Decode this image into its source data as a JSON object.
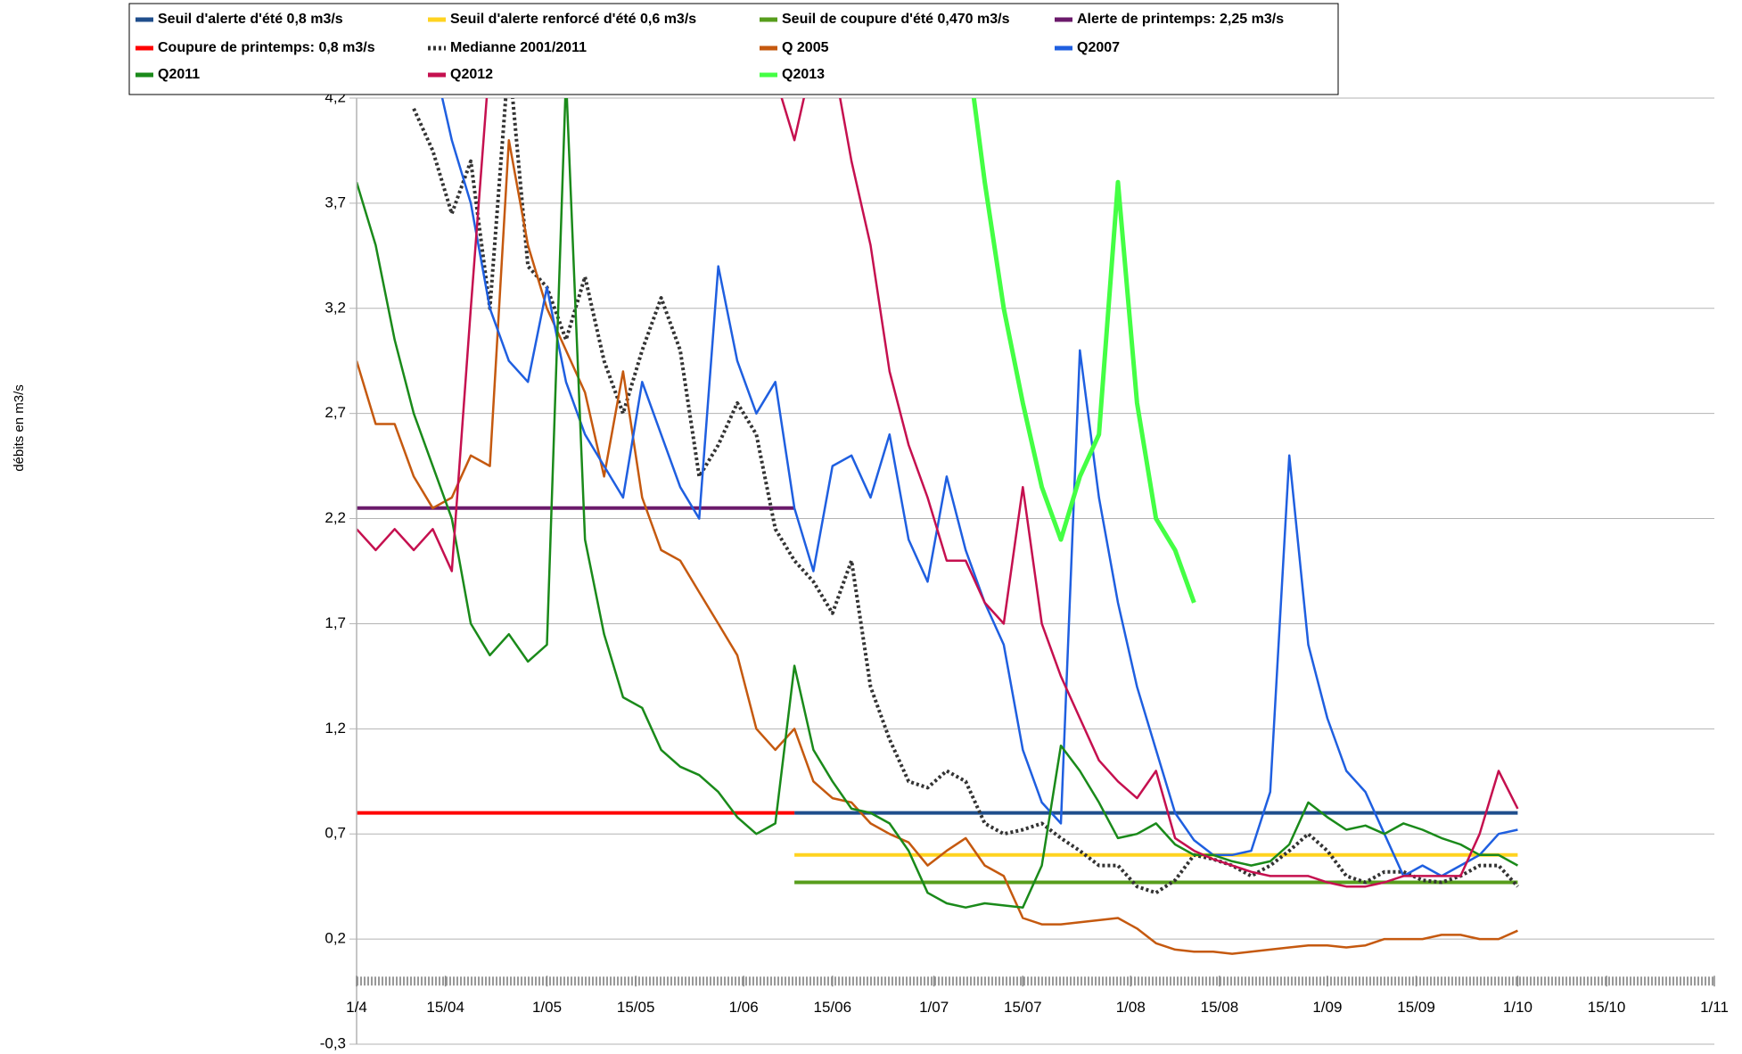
{
  "chart_data": {
    "type": "line",
    "y_label": "débits en m3/s",
    "x": [
      0,
      3,
      6,
      9,
      12,
      15,
      18,
      21,
      24,
      27,
      30,
      33,
      36,
      39,
      42,
      45,
      48,
      51,
      54,
      57,
      60,
      63,
      66,
      69,
      72,
      75,
      78,
      81,
      84,
      87,
      90,
      93,
      96,
      99,
      102,
      105,
      108,
      111,
      114,
      117,
      120,
      123,
      126,
      129,
      132,
      135,
      138,
      141,
      144,
      147,
      150,
      153,
      156,
      159,
      162,
      165,
      168,
      171,
      174,
      177,
      180,
      183
    ],
    "xlim": [
      0,
      214
    ],
    "xticks": [
      {
        "value": 0,
        "label": "1/4"
      },
      {
        "value": 14,
        "label": "15/04"
      },
      {
        "value": 30,
        "label": "1/05"
      },
      {
        "value": 44,
        "label": "15/05"
      },
      {
        "value": 61,
        "label": "1/06"
      },
      {
        "value": 75,
        "label": "15/06"
      },
      {
        "value": 91,
        "label": "1/07"
      },
      {
        "value": 105,
        "label": "15/07"
      },
      {
        "value": 122,
        "label": "1/08"
      },
      {
        "value": 136,
        "label": "15/08"
      },
      {
        "value": 153,
        "label": "1/09"
      },
      {
        "value": 167,
        "label": "15/09"
      },
      {
        "value": 183,
        "label": "1/10"
      },
      {
        "value": 197,
        "label": "15/10"
      },
      {
        "value": 214,
        "label": "1/11"
      }
    ],
    "ylim": [
      -0.3,
      4.2
    ],
    "yticks": [
      {
        "value": -0.3,
        "label": "-0,3"
      },
      {
        "value": 0.2,
        "label": "0,2"
      },
      {
        "value": 0.7,
        "label": "0,7"
      },
      {
        "value": 1.2,
        "label": "1,2"
      },
      {
        "value": 1.7,
        "label": "1,7"
      },
      {
        "value": 2.2,
        "label": "2,2"
      },
      {
        "value": 2.7,
        "label": "2,7"
      },
      {
        "value": 3.2,
        "label": "3,2"
      },
      {
        "value": 3.7,
        "label": "3,7"
      },
      {
        "value": 4.2,
        "label": "4,2"
      }
    ],
    "grid": true,
    "legend": "top",
    "series": [
      {
        "name": "Seuil d'alerte d'été 0,8 m3/s",
        "color": "#1f4e8c",
        "linewidth": 4,
        "values": [
          null,
          null,
          null,
          null,
          null,
          null,
          null,
          null,
          null,
          null,
          null,
          null,
          null,
          null,
          null,
          null,
          null,
          null,
          null,
          null,
          null,
          null,
          null,
          0.8,
          0.8,
          0.8,
          0.8,
          0.8,
          0.8,
          0.8,
          0.8,
          0.8,
          0.8,
          0.8,
          0.8,
          0.8,
          0.8,
          0.8,
          0.8,
          0.8,
          0.8,
          0.8,
          0.8,
          0.8,
          0.8,
          0.8,
          0.8,
          0.8,
          0.8,
          0.8,
          0.8,
          0.8,
          0.8,
          0.8,
          0.8,
          0.8,
          0.8,
          0.8,
          0.8,
          0.8,
          0.8,
          0.8
        ]
      },
      {
        "name": "Seuil d'alerte renforcé d'été 0,6 m3/s",
        "color": "#ffd320",
        "linewidth": 4,
        "values": [
          null,
          null,
          null,
          null,
          null,
          null,
          null,
          null,
          null,
          null,
          null,
          null,
          null,
          null,
          null,
          null,
          null,
          null,
          null,
          null,
          null,
          null,
          null,
          0.6,
          0.6,
          0.6,
          0.6,
          0.6,
          0.6,
          0.6,
          0.6,
          0.6,
          0.6,
          0.6,
          0.6,
          0.6,
          0.6,
          0.6,
          0.6,
          0.6,
          0.6,
          0.6,
          0.6,
          0.6,
          0.6,
          0.6,
          0.6,
          0.6,
          0.6,
          0.6,
          0.6,
          0.6,
          0.6,
          0.6,
          0.6,
          0.6,
          0.6,
          0.6,
          0.6,
          0.6,
          0.6,
          0.6
        ]
      },
      {
        "name": "Seuil de coupure d'été 0,470 m3/s",
        "color": "#579d1c",
        "linewidth": 4,
        "values": [
          null,
          null,
          null,
          null,
          null,
          null,
          null,
          null,
          null,
          null,
          null,
          null,
          null,
          null,
          null,
          null,
          null,
          null,
          null,
          null,
          null,
          null,
          null,
          0.47,
          0.47,
          0.47,
          0.47,
          0.47,
          0.47,
          0.47,
          0.47,
          0.47,
          0.47,
          0.47,
          0.47,
          0.47,
          0.47,
          0.47,
          0.47,
          0.47,
          0.47,
          0.47,
          0.47,
          0.47,
          0.47,
          0.47,
          0.47,
          0.47,
          0.47,
          0.47,
          0.47,
          0.47,
          0.47,
          0.47,
          0.47,
          0.47,
          0.47,
          0.47,
          0.47,
          0.47,
          0.47,
          0.47
        ]
      },
      {
        "name": "Alerte de printemps: 2,25 m3/s",
        "color": "#6b1a6b",
        "linewidth": 4,
        "values": [
          2.25,
          2.25,
          2.25,
          2.25,
          2.25,
          2.25,
          2.25,
          2.25,
          2.25,
          2.25,
          2.25,
          2.25,
          2.25,
          2.25,
          2.25,
          2.25,
          2.25,
          2.25,
          2.25,
          2.25,
          2.25,
          2.25,
          2.25,
          2.25,
          null,
          null,
          null,
          null,
          null,
          null,
          null,
          null,
          null,
          null,
          null,
          null,
          null,
          null,
          null,
          null,
          null,
          null,
          null,
          null,
          null,
          null,
          null,
          null,
          null,
          null,
          null,
          null,
          null,
          null,
          null,
          null,
          null,
          null,
          null,
          null,
          null,
          null
        ]
      },
      {
        "name": "Coupure de printemps: 0,8 m3/s",
        "color": "#ff0000",
        "linewidth": 4,
        "values": [
          0.8,
          0.8,
          0.8,
          0.8,
          0.8,
          0.8,
          0.8,
          0.8,
          0.8,
          0.8,
          0.8,
          0.8,
          0.8,
          0.8,
          0.8,
          0.8,
          0.8,
          0.8,
          0.8,
          0.8,
          0.8,
          0.8,
          0.8,
          0.8,
          null,
          null,
          null,
          null,
          null,
          null,
          null,
          null,
          null,
          null,
          null,
          null,
          null,
          null,
          null,
          null,
          null,
          null,
          null,
          null,
          null,
          null,
          null,
          null,
          null,
          null,
          null,
          null,
          null,
          null,
          null,
          null,
          null,
          null,
          null,
          null,
          null,
          null
        ]
      },
      {
        "name": "Medianne 2001/2011",
        "color": "#333333",
        "linewidth": 4,
        "dashed": true,
        "values": [
          null,
          null,
          null,
          4.15,
          3.95,
          3.65,
          3.9,
          3.2,
          4.4,
          3.4,
          3.3,
          3.05,
          3.35,
          2.95,
          2.7,
          3.0,
          3.25,
          3.0,
          2.4,
          2.55,
          2.75,
          2.6,
          2.15,
          2.0,
          1.9,
          1.75,
          2.0,
          1.4,
          1.15,
          0.95,
          0.92,
          1.0,
          0.95,
          0.75,
          0.7,
          0.72,
          0.75,
          0.68,
          0.62,
          0.55,
          0.55,
          0.45,
          0.42,
          0.48,
          0.6,
          0.58,
          0.55,
          0.5,
          0.55,
          0.62,
          0.7,
          0.62,
          0.5,
          0.47,
          0.52,
          0.52,
          0.48,
          0.47,
          0.5,
          0.55,
          0.55,
          0.45
        ]
      },
      {
        "name": "Q 2005",
        "color": "#c5590f",
        "linewidth": 2.5,
        "values": [
          2.95,
          2.65,
          2.65,
          2.4,
          2.25,
          2.3,
          2.5,
          2.45,
          4.0,
          3.5,
          3.2,
          3.0,
          2.8,
          2.4,
          2.9,
          2.3,
          2.05,
          2.0,
          1.85,
          1.7,
          1.55,
          1.2,
          1.1,
          1.2,
          0.95,
          0.87,
          0.85,
          0.75,
          0.7,
          0.66,
          0.55,
          0.62,
          0.68,
          0.55,
          0.5,
          0.3,
          0.27,
          0.27,
          0.28,
          0.29,
          0.3,
          0.25,
          0.18,
          0.15,
          0.14,
          0.14,
          0.13,
          0.14,
          0.15,
          0.16,
          0.17,
          0.17,
          0.16,
          0.17,
          0.2,
          0.2,
          0.2,
          0.22,
          0.22,
          0.2,
          0.2,
          0.24
        ]
      },
      {
        "name": "Q2007",
        "color": "#1f5fe0",
        "linewidth": 2.5,
        "values": [
          null,
          null,
          null,
          null,
          4.4,
          4.0,
          3.7,
          3.2,
          2.95,
          2.85,
          3.3,
          2.85,
          2.6,
          2.45,
          2.3,
          2.85,
          2.6,
          2.35,
          2.2,
          3.4,
          2.95,
          2.7,
          2.85,
          2.25,
          1.95,
          2.45,
          2.5,
          2.3,
          2.6,
          2.1,
          1.9,
          2.4,
          2.05,
          1.8,
          1.6,
          1.1,
          0.85,
          0.75,
          3.0,
          2.3,
          1.8,
          1.4,
          1.1,
          0.8,
          0.67,
          0.6,
          0.6,
          0.62,
          0.9,
          2.5,
          1.6,
          1.25,
          1.0,
          0.9,
          0.7,
          0.5,
          0.55,
          0.5,
          0.55,
          0.6,
          0.7,
          0.72
        ]
      },
      {
        "name": "Q2011",
        "color": "#1a8a1a",
        "linewidth": 2.5,
        "values": [
          3.8,
          3.5,
          3.05,
          2.7,
          2.45,
          2.2,
          1.7,
          1.55,
          1.65,
          1.52,
          1.6,
          4.3,
          2.1,
          1.65,
          1.35,
          1.3,
          1.1,
          1.02,
          0.98,
          0.9,
          0.78,
          0.7,
          0.75,
          1.5,
          1.1,
          0.95,
          0.82,
          0.8,
          0.75,
          0.62,
          0.42,
          0.37,
          0.35,
          0.37,
          0.36,
          0.35,
          0.55,
          1.12,
          1.0,
          0.85,
          0.68,
          0.7,
          0.75,
          0.65,
          0.6,
          0.6,
          0.57,
          0.55,
          0.57,
          0.65,
          0.85,
          0.78,
          0.72,
          0.74,
          0.7,
          0.75,
          0.72,
          0.68,
          0.65,
          0.6,
          0.6,
          0.55
        ]
      },
      {
        "name": "Q2012",
        "color": "#c5104f",
        "linewidth": 2.5,
        "values": [
          2.15,
          2.05,
          2.15,
          2.05,
          2.15,
          1.95,
          3.2,
          4.4,
          null,
          null,
          null,
          null,
          null,
          null,
          null,
          null,
          null,
          null,
          null,
          null,
          null,
          null,
          4.3,
          4.0,
          4.4,
          4.4,
          3.9,
          3.5,
          2.9,
          2.55,
          2.3,
          2.0,
          2.0,
          1.8,
          1.7,
          2.35,
          1.7,
          1.45,
          1.25,
          1.05,
          0.95,
          0.87,
          1.0,
          0.68,
          0.62,
          0.58,
          0.55,
          0.52,
          0.5,
          0.5,
          0.5,
          0.47,
          0.45,
          0.45,
          0.47,
          0.5,
          0.5,
          0.5,
          0.5,
          0.7,
          1.0,
          0.82
        ]
      },
      {
        "name": "Q2013",
        "color": "#44ff44",
        "linewidth": 5,
        "values": [
          null,
          null,
          null,
          null,
          null,
          null,
          null,
          null,
          null,
          null,
          null,
          null,
          null,
          null,
          null,
          null,
          null,
          null,
          null,
          null,
          null,
          null,
          null,
          null,
          null,
          null,
          null,
          null,
          null,
          null,
          null,
          null,
          4.5,
          3.8,
          3.2,
          2.75,
          2.35,
          2.1,
          2.4,
          2.6,
          3.8,
          2.75,
          2.2,
          2.05,
          1.8,
          null,
          null,
          null,
          null,
          null,
          null,
          null,
          null,
          null,
          null,
          null,
          null,
          null,
          null,
          null,
          null,
          null
        ]
      }
    ]
  }
}
